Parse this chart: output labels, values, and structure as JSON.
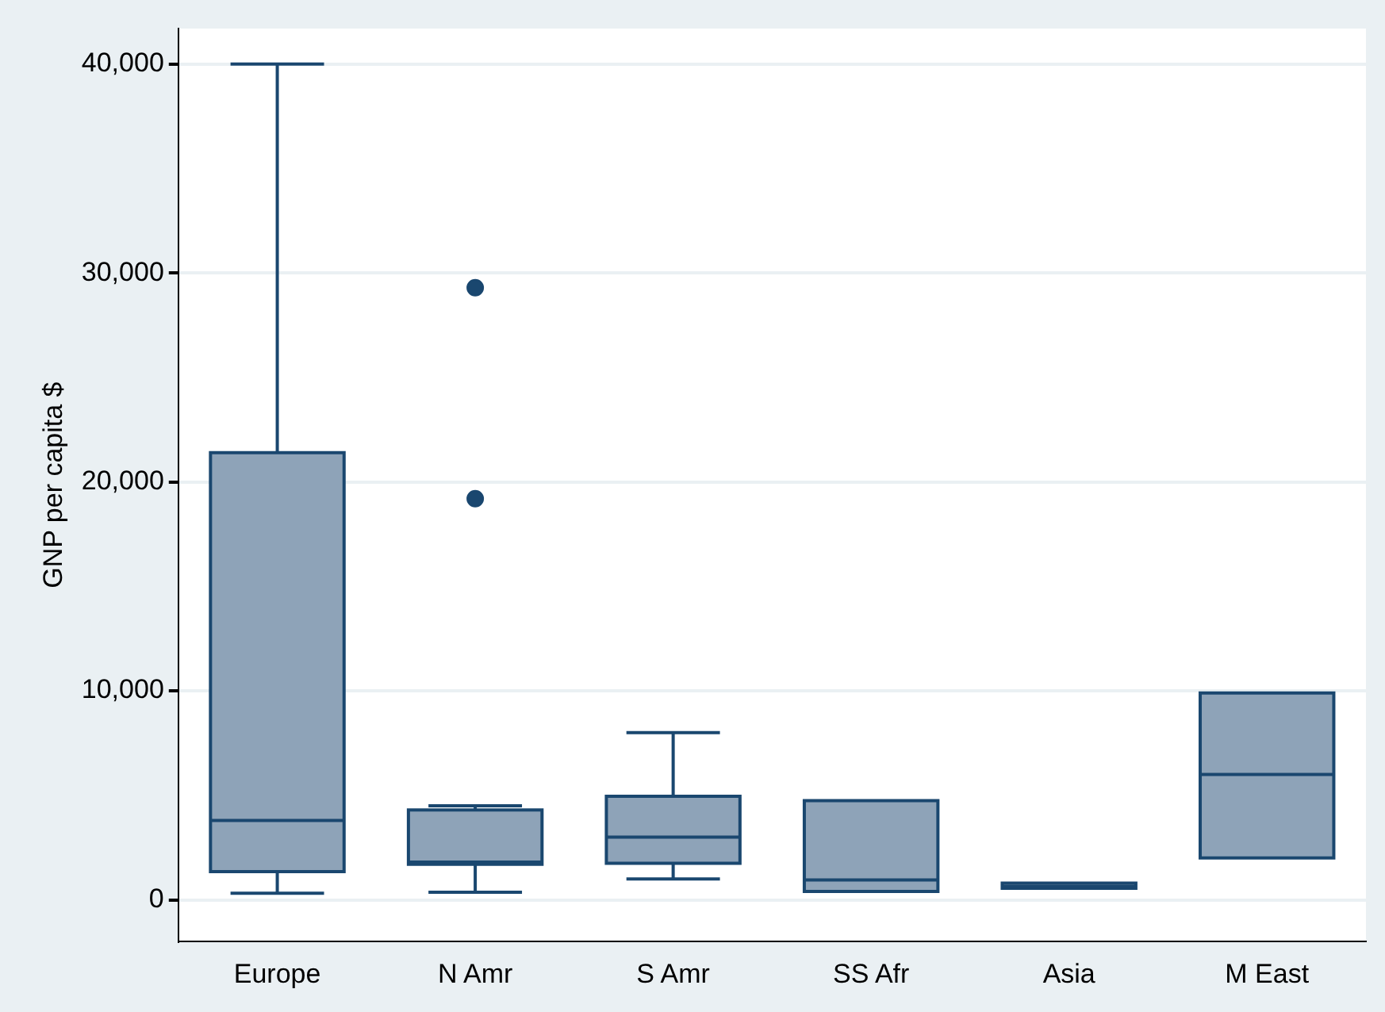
{
  "chart_data": {
    "type": "box",
    "ylabel": "GNP per capita $",
    "categories": [
      "Europe",
      "N Amr",
      "S Amr",
      "SS Afr",
      "Asia",
      "M East"
    ],
    "series": [
      {
        "color": "#8ea3b8",
        "boxes": [
          {
            "low": 310,
            "q1": 1350,
            "median": 3800,
            "q3": 21400,
            "high": 40000
          },
          {
            "low": 360,
            "q1": 1700,
            "median": 1800,
            "q3": 4300,
            "high": 4500,
            "outliers": [
              19200,
              29300
            ]
          },
          {
            "low": 1000,
            "q1": 1750,
            "median": 3000,
            "q3": 4950,
            "high": 8000
          },
          {
            "low": 400,
            "q1": 400,
            "median": 950,
            "q3": 4750,
            "high": 4750
          },
          {
            "low": 550,
            "q1": 550,
            "median": 650,
            "q3": 800,
            "high": 800
          },
          {
            "low": 2000,
            "q1": 2000,
            "median": 6000,
            "q3": 9900,
            "high": 9900
          }
        ]
      }
    ],
    "ylim": [
      -2000,
      41700
    ],
    "yticks": [
      {
        "value": 0,
        "label": "0"
      },
      {
        "value": 10000,
        "label": "10,000"
      },
      {
        "value": 20000,
        "label": "20,000"
      },
      {
        "value": 30000,
        "label": "30,000"
      },
      {
        "value": 40000,
        "label": "40,000"
      }
    ],
    "grid": "y"
  }
}
